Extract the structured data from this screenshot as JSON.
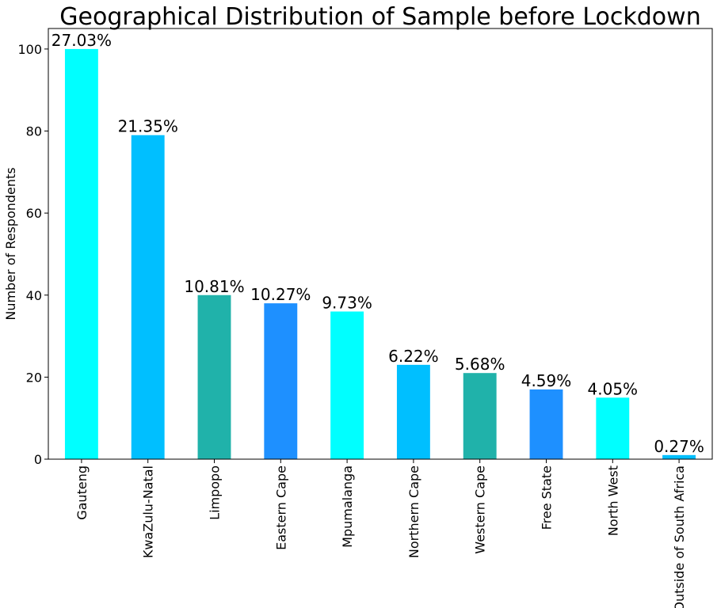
{
  "chart_data": {
    "type": "bar",
    "title": "Geographical Distribution of Sample before Lockdown",
    "xlabel": "",
    "ylabel": "Number of Respondents",
    "ylim": [
      0,
      105
    ],
    "yticks": [
      0,
      20,
      40,
      60,
      80,
      100
    ],
    "grid": false,
    "legend": "none",
    "categories": [
      "Gauteng",
      "KwaZulu-Natal",
      "Limpopo",
      "Eastern Cape",
      "Mpumalanga",
      "Northern Cape",
      "Western Cape",
      "Free State",
      "North West",
      "Outside of South Africa"
    ],
    "values": [
      100,
      79,
      40,
      38,
      36,
      23,
      21,
      17,
      15,
      1
    ],
    "data_labels": [
      "27.03%",
      "21.35%",
      "10.81%",
      "10.27%",
      "9.73%",
      "6.22%",
      "5.68%",
      "4.59%",
      "4.05%",
      "0.27%"
    ],
    "colors": [
      "#00FFFF",
      "#00BFFF",
      "#20B2AA",
      "#1E90FF",
      "#00FFFF",
      "#00BFFF",
      "#20B2AA",
      "#1E90FF",
      "#00FFFF",
      "#00BFFF"
    ]
  }
}
